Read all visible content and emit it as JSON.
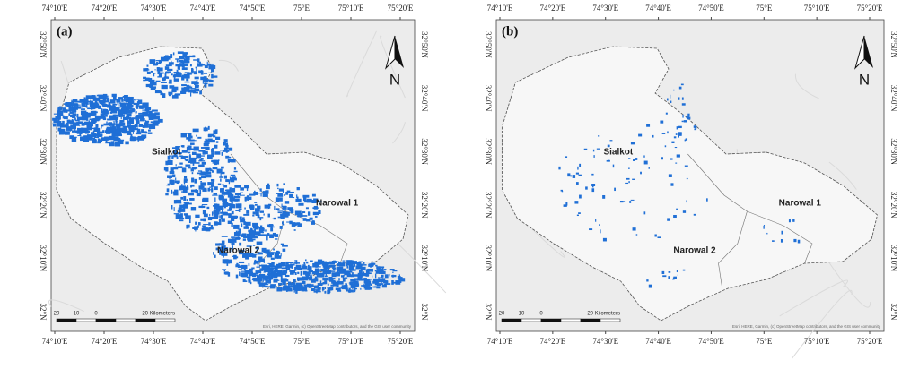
{
  "panels": [
    {
      "label": "(a)",
      "top_ticks": [
        "74°10'E",
        "74°20'E",
        "74°30'E",
        "74°40'E",
        "74°50'E",
        "75°E",
        "75°10'E",
        "75°20'E"
      ],
      "bottom_ticks": [
        "74°10'E",
        "74°20'E",
        "74°30'E",
        "74°40'E",
        "74°50'E",
        "75°E",
        "75°10'E",
        "75°20'E"
      ],
      "left_ticks": [
        "32°50'N",
        "32°40'N",
        "32°30'N",
        "32°20'N",
        "32°10'N",
        "32°N"
      ],
      "right_ticks": [
        "32°50'N",
        "32°40'N",
        "32°30'N",
        "32°20'N",
        "32°10'N",
        "32°N"
      ],
      "regions": [
        "Sialkot",
        "Narowal 1",
        "Narowal 2"
      ],
      "north": "N",
      "scale": [
        "20",
        "10",
        "0",
        "20 Kilometers"
      ],
      "attribution": "Esri, HERE, Garmin, (c) OpenStreetMap contributors, and the GIS user community"
    },
    {
      "label": "(b)",
      "top_ticks": [
        "74°10'E",
        "74°20'E",
        "74°30'E",
        "74°40'E",
        "74°50'E",
        "75°E",
        "75°10'E",
        "75°20'E"
      ],
      "bottom_ticks": [
        "74°10'E",
        "74°20'E",
        "74°30'E",
        "74°40'E",
        "74°50'E",
        "75°E",
        "75°10'E",
        "75°20'E"
      ],
      "left_ticks": [
        "32°50'N",
        "32°40'N",
        "32°30'N",
        "32°20'N",
        "32°10'N",
        "32°N"
      ],
      "right_ticks": [
        "32°50'N",
        "32°40'N",
        "32°30'N",
        "32°20'N",
        "32°10'N",
        "32°N"
      ],
      "regions": [
        "Sialkot",
        "Narowal 1",
        "Narowal 2"
      ],
      "north": "N",
      "scale": [
        "20",
        "10",
        "0",
        "20 Kilometers"
      ],
      "attribution": "Esri, HERE, Garmin, (c) OpenStreetMap contributors, and the GIS user community"
    }
  ]
}
